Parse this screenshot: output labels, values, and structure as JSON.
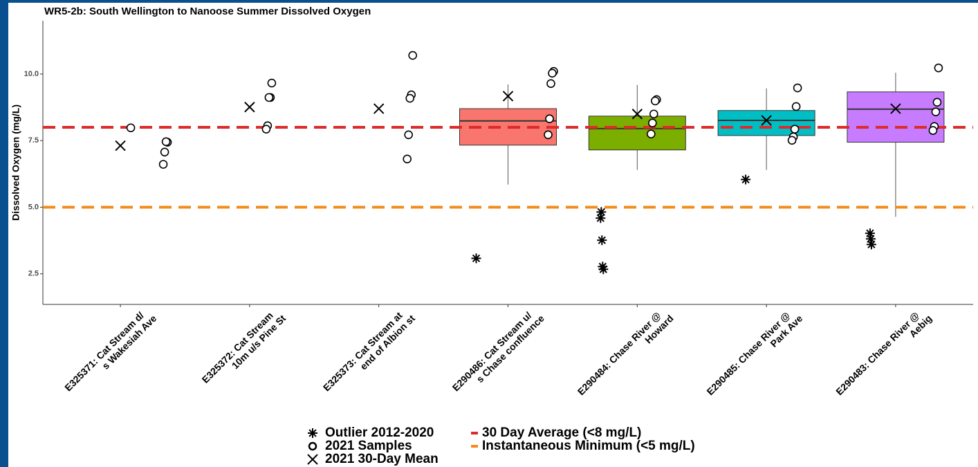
{
  "chart_data": {
    "type": "box",
    "title": "WR5-2b: South Wellington to Nanoose Summer Dissolved Oxygen",
    "ylabel": "Dissolved Oxygen (mg/L)",
    "categories": [
      [
        "E325371: Cat Stream d/",
        "s Wakesiah Ave"
      ],
      [
        "E325372: Cat Stream",
        "10m u/s Pine St"
      ],
      [
        "E325373: Cat Stream at",
        "end of Albion st"
      ],
      [
        "E290486: Cat Stream u/",
        "s Chase confluence"
      ],
      [
        "E290484: Chase River @",
        "Howard"
      ],
      [
        "E290485: Chase River @",
        "Park Ave"
      ],
      [
        "E290483: Chase River @",
        "Aebig"
      ]
    ],
    "ylim": [
      1.35,
      12
    ],
    "yticks": [
      {
        "value": 2.5,
        "label": "2.5"
      },
      {
        "value": 5,
        "label": "5.0"
      },
      {
        "value": 7.5,
        "label": "7.5"
      },
      {
        "value": 10,
        "label": "10.0"
      }
    ],
    "boxes": [
      null,
      null,
      null,
      {
        "whislo": 5.85,
        "q1": 7.33,
        "median": 8.24,
        "q3": 8.7,
        "whishi": 9.61
      },
      {
        "whislo": 6.4,
        "q1": 7.15,
        "median": 7.95,
        "q3": 8.42,
        "whishi": 9.59
      },
      {
        "whislo": 6.4,
        "q1": 7.69,
        "median": 8.26,
        "q3": 8.63,
        "whishi": 9.46
      },
      {
        "whislo": 4.64,
        "q1": 7.44,
        "median": 8.68,
        "q3": 9.33,
        "whishi": 10.05
      }
    ],
    "box_colors": [
      null,
      null,
      null,
      "#f8766d",
      "#7cae00",
      "#00bfc4",
      "#c77cff"
    ],
    "means": [
      7.31,
      8.76,
      8.7,
      9.17,
      8.5,
      8.26,
      8.7
    ],
    "samples": [
      [
        7.98,
        7.44,
        7.46,
        7.07,
        6.61
      ],
      [
        9.66,
        9.12,
        9.12,
        8.06,
        7.93
      ],
      [
        10.7,
        9.22,
        9.09,
        7.72,
        6.81
      ],
      [
        10.1,
        10.03,
        9.64,
        8.32,
        7.72
      ],
      [
        9.04,
        8.99,
        8.5,
        8.16,
        7.75
      ],
      [
        9.48,
        8.78,
        7.93,
        7.64,
        7.51
      ],
      [
        10.23,
        8.94,
        8.58,
        8.03,
        7.88
      ]
    ],
    "outliers": [
      [],
      [],
      [],
      [
        3.08
      ],
      [
        4.59,
        4.82,
        3.76,
        2.77,
        2.67
      ],
      [
        6.04
      ],
      [
        4.02,
        3.81,
        3.6
      ]
    ],
    "hlines": [
      {
        "value": 8,
        "color": "#dd2b2b",
        "label": "30 Day Average (<8 mg/L)"
      },
      {
        "value": 5,
        "color": "#f28c1b",
        "label": "Instantaneous Minimum (<5 mg/L)"
      }
    ],
    "marker_legend": {
      "outlier": "Outlier 2012-2020",
      "sample": "2021 Samples",
      "mean": "2021 30-Day Mean"
    }
  }
}
